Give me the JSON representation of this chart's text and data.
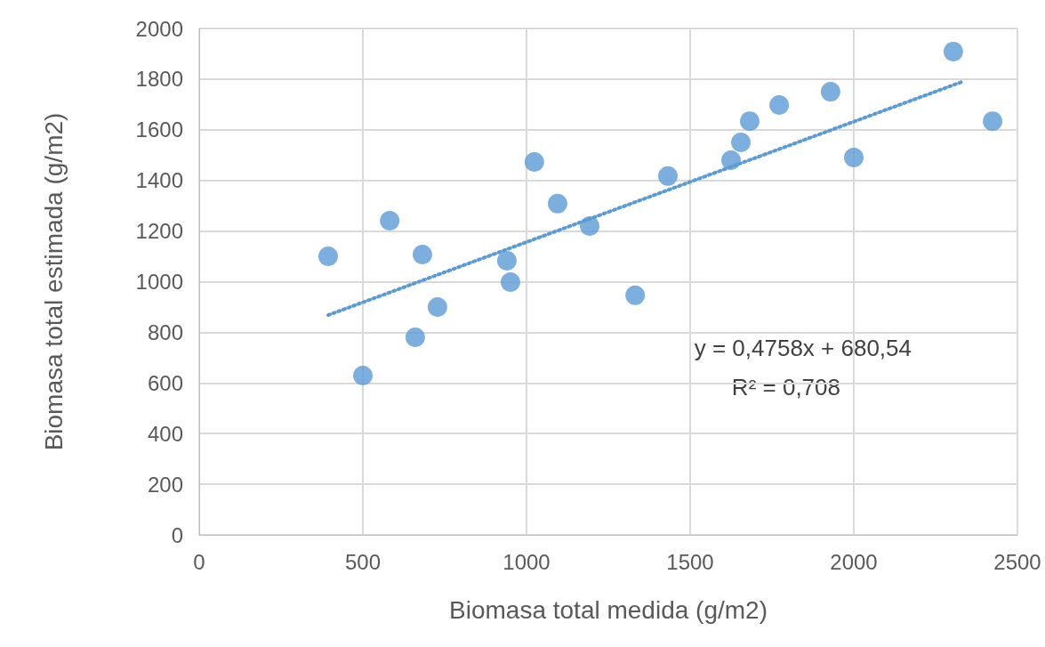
{
  "chart_data": {
    "type": "scatter",
    "xlabel": "Biomasa total medida (g/m2)",
    "ylabel": "Biomasa total estimada (g/m2)",
    "xlim": [
      0,
      2500
    ],
    "xticks": [
      0,
      500,
      1000,
      1500,
      2000,
      2500
    ],
    "ylim": [
      0,
      2000
    ],
    "yticks": [
      0,
      200,
      400,
      600,
      800,
      1000,
      1200,
      1400,
      1600,
      1800,
      2000
    ],
    "grid": true,
    "marker": "circle",
    "series": [
      {
        "color": "#5b9bd5",
        "x": [
          394,
          500,
          582,
          682,
          660,
          728,
          940,
          951,
          1024,
          1095,
          1193,
          1332,
          1432,
          1625,
          1655,
          1682,
          1772,
          1929,
          2000,
          2304,
          2424
        ],
        "values": [
          1100,
          629,
          1241,
          1107,
          780,
          900,
          1083,
          998,
          1473,
          1308,
          1220,
          946,
          1417,
          1480,
          1550,
          1634,
          1698,
          1750,
          1490,
          1909,
          1634
        ]
      },
      {
        "type": "line",
        "color": "#5b9bd5",
        "line_style": "dotted",
        "marker": "none",
        "x": [
          394,
          2330
        ],
        "values": [
          868,
          1789
        ]
      }
    ],
    "annotations": [
      "y = 0,4758x + 680,54",
      "R² = 0,708"
    ]
  }
}
